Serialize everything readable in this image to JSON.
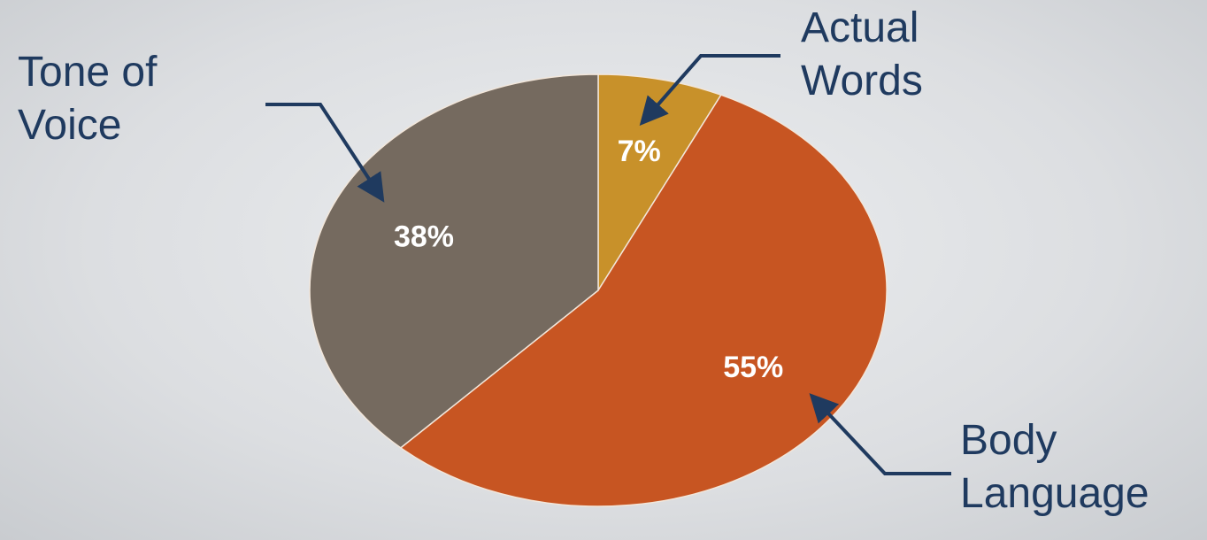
{
  "chart_data": {
    "type": "pie",
    "categories": [
      "Actual Words",
      "Body Language",
      "Tone of Voice"
    ],
    "values": [
      7,
      55,
      38
    ],
    "value_labels": [
      "7%",
      "55%",
      "38%"
    ],
    "colors": [
      "#c8912a",
      "#c75522",
      "#756a5f"
    ]
  }
}
